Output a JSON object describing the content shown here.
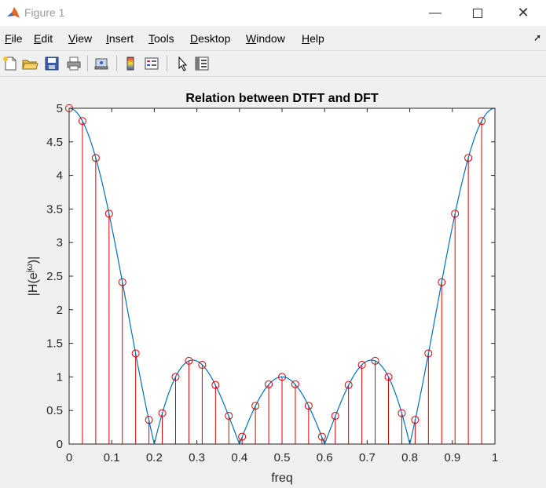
{
  "window": {
    "title": "Figure 1"
  },
  "menu": [
    "File",
    "Edit",
    "View",
    "Insert",
    "Tools",
    "Desktop",
    "Window",
    "Help"
  ],
  "menu_mnemonic": [
    "F",
    "E",
    "V",
    "I",
    "T",
    "D",
    "W",
    "H"
  ],
  "chart_data": {
    "type": "line",
    "title": "Relation between DTFT and DFT",
    "xlabel": "freq",
    "ylabel": "|H(e^{jω})|",
    "ylabel_base": "|H(e",
    "ylabel_sup": "jω",
    "ylabel_tail": ")|",
    "xlim": [
      0,
      1
    ],
    "ylim": [
      0,
      5
    ],
    "xticks": [
      "0",
      "0.1",
      "0.2",
      "0.3",
      "0.4",
      "0.5",
      "0.6",
      "0.7",
      "0.8",
      "0.9",
      "1"
    ],
    "yticks": [
      "0",
      "0.5",
      "1",
      "1.5",
      "2",
      "2.5",
      "3",
      "3.5",
      "4",
      "4.5",
      "5"
    ],
    "grid": false,
    "series": [
      {
        "kind": "line",
        "color": "#0072bd",
        "formula": "|sin(5*pi*f)/sin(pi*f)|"
      },
      {
        "kind": "stem",
        "color": "#d40000",
        "x": [
          0,
          0.03125,
          0.0625,
          0.09375,
          0.125,
          0.15625,
          0.1875,
          0.21875,
          0.25,
          0.28125,
          0.3125,
          0.34375,
          0.375,
          0.40625,
          0.4375,
          0.46875,
          0.5,
          0.53125,
          0.5625,
          0.59375,
          0.625,
          0.65625,
          0.6875,
          0.71875,
          0.75,
          0.78125,
          0.8125,
          0.84375,
          0.875,
          0.90625,
          0.9375,
          0.96875
        ],
        "y": [
          5,
          4.81,
          4.26,
          3.43,
          2.41,
          1.35,
          0.36,
          0.46,
          1.0,
          1.24,
          1.18,
          0.88,
          0.42,
          0.11,
          0.57,
          0.89,
          1.0,
          0.89,
          0.57,
          0.11,
          0.42,
          0.88,
          1.18,
          1.24,
          1.0,
          0.46,
          0.36,
          1.35,
          2.41,
          3.43,
          4.26,
          4.81
        ]
      }
    ]
  }
}
